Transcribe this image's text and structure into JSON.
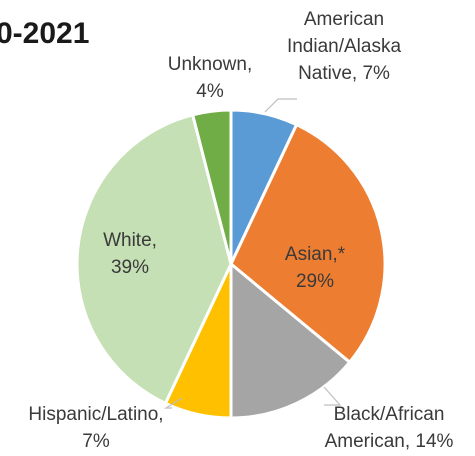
{
  "chart_data": {
    "type": "pie",
    "title": "0-2021",
    "slices": [
      {
        "label_lines": [
          "American",
          "Indian/Alaska",
          "Native, 7%"
        ],
        "category": "American Indian/Alaska Native",
        "value": 7,
        "color": "#5b9bd5"
      },
      {
        "label_lines": [
          "Asian,*",
          "29%"
        ],
        "category": "Asian,*",
        "value": 29,
        "color": "#ed7d31"
      },
      {
        "label_lines": [
          "Black/African",
          "American, 14%"
        ],
        "category": "Black/African American",
        "value": 14,
        "color": "#a5a5a5"
      },
      {
        "label_lines": [
          "Hispanic/Latino,",
          "7%"
        ],
        "category": "Hispanic/Latino",
        "value": 7,
        "color": "#ffc000"
      },
      {
        "label_lines": [
          "White,",
          "39%"
        ],
        "category": "White",
        "value": 39,
        "color": "#c5e0b4"
      },
      {
        "label_lines": [
          "Unknown,",
          "4%"
        ],
        "category": "Unknown",
        "value": 4,
        "color": "#70ad47"
      }
    ]
  }
}
